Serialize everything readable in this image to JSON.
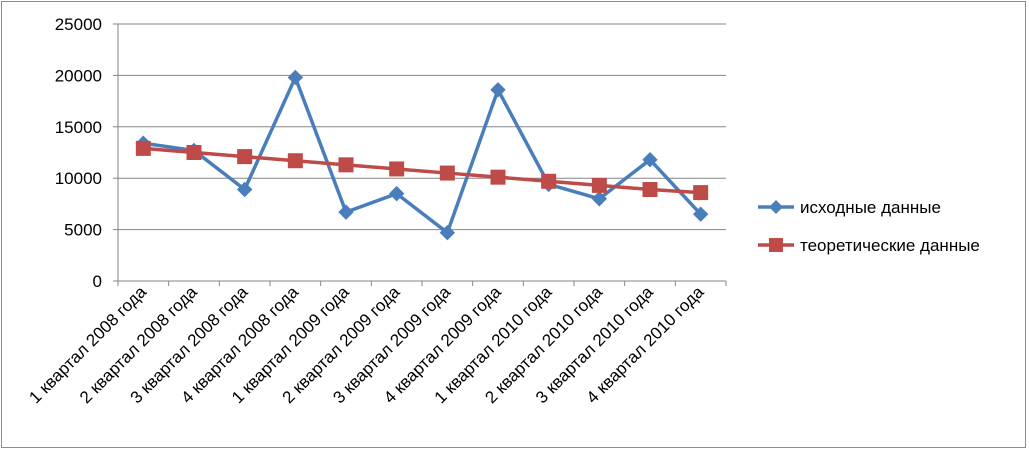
{
  "chart_data": {
    "type": "line",
    "title": "",
    "xlabel": "",
    "ylabel": "",
    "ylim": [
      0,
      25000
    ],
    "y_ticks": [
      0,
      5000,
      10000,
      15000,
      20000,
      25000
    ],
    "grid": true,
    "legend_position": "right",
    "categories": [
      "1 квартал 2008 года",
      "2 квартал 2008 года",
      "3 квартал 2008 года",
      "4 квартал 2008 года",
      "1 квартал 2009 года",
      "2 квартал 2009 года",
      "3 квартал 2009 года",
      "4 квартал 2009 года",
      "1 квартал 2010 года",
      "2 квартал 2010 года",
      "3 квартал 2010 года",
      "4 квартал 2010 года"
    ],
    "series": [
      {
        "name": "исходные данные",
        "color": "#4a7ebb",
        "marker": "diamond",
        "values": [
          13400,
          12700,
          8900,
          19800,
          6700,
          8500,
          4700,
          18600,
          9400,
          8000,
          11800,
          6500
        ]
      },
      {
        "name": "теоретические данные",
        "color": "#be4b48",
        "marker": "square",
        "values": [
          12900,
          12500,
          12100,
          11700,
          11300,
          10900,
          10500,
          10100,
          9700,
          9300,
          8900,
          8600
        ]
      }
    ]
  }
}
